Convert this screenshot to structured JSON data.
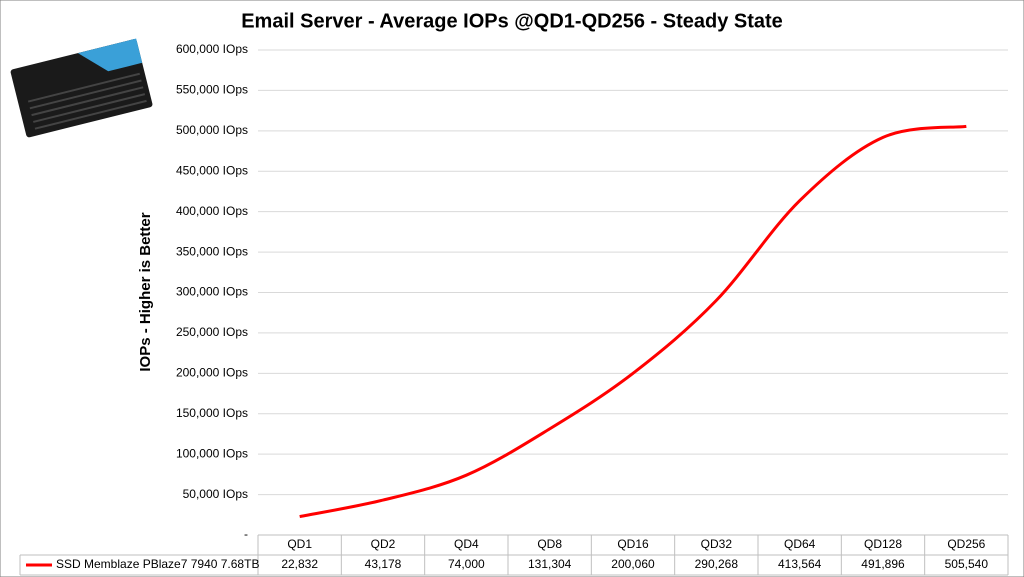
{
  "chart_data": {
    "type": "line",
    "title": "Email Server - Average IOPs @QD1-QD256  - Steady State",
    "y_label": "IOPs  -  Higher is Better",
    "categories": [
      "QD1",
      "QD2",
      "QD4",
      "QD8",
      "QD16",
      "QD32",
      "QD64",
      "QD128",
      "QD256"
    ],
    "series": [
      {
        "name": "SSD Memblaze PBlaze7 7940 7.68TB",
        "color": "#ff0000",
        "values": [
          22832,
          43178,
          74000,
          131304,
          200060,
          290268,
          413564,
          491896,
          505540
        ],
        "value_labels": [
          "22,832",
          "43,178",
          "74,000",
          "131,304",
          "200,060",
          "290,268",
          "413,564",
          "491,896",
          "505,540"
        ]
      }
    ],
    "ylim": [
      0,
      600000
    ],
    "yticks": [
      {
        "value": 0,
        "label": "-"
      },
      {
        "value": 50000,
        "label": "50,000 IOps"
      },
      {
        "value": 100000,
        "label": "100,000 IOps"
      },
      {
        "value": 150000,
        "label": "150,000 IOps"
      },
      {
        "value": 200000,
        "label": "200,000 IOps"
      },
      {
        "value": 250000,
        "label": "250,000 IOps"
      },
      {
        "value": 300000,
        "label": "300,000 IOps"
      },
      {
        "value": 350000,
        "label": "350,000 IOps"
      },
      {
        "value": 400000,
        "label": "400,000 IOps"
      },
      {
        "value": 450000,
        "label": "450,000 IOps"
      },
      {
        "value": 500000,
        "label": "500,000 IOps"
      },
      {
        "value": 550000,
        "label": "550,000 IOps"
      },
      {
        "value": 600000,
        "label": "600,000 IOps"
      }
    ],
    "grid": true
  }
}
